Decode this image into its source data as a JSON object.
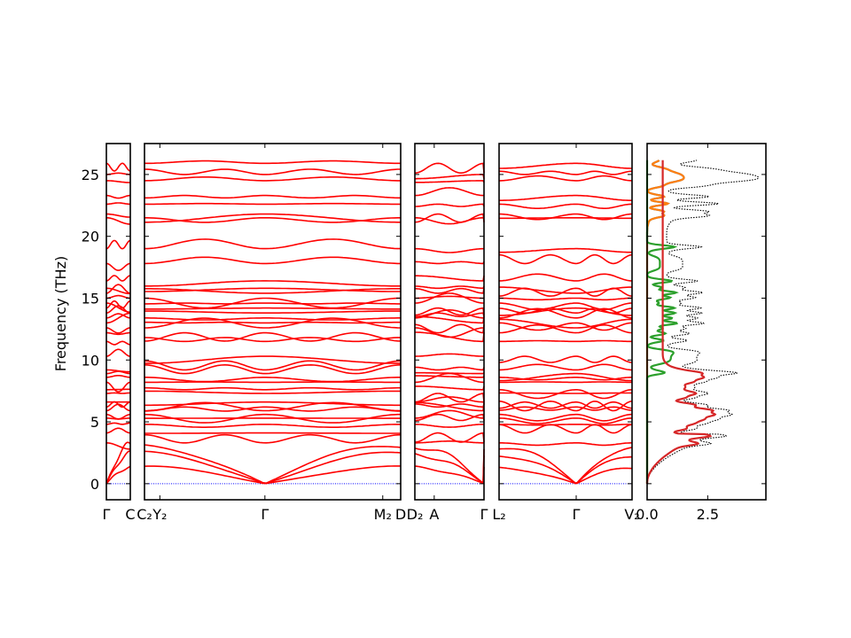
{
  "chart_data": {
    "type": "line",
    "title": "",
    "ylabel": "Frequency (THz)",
    "ylim": [
      -1.3,
      27.5
    ],
    "yticks": [
      0,
      5,
      10,
      15,
      20,
      25
    ],
    "ytick_labels": [
      "0",
      "5",
      "10",
      "15",
      "20",
      "25"
    ],
    "band_color": "#ff0000",
    "zero_line_color": "#0000ff",
    "panels": [
      {
        "name": "panel-1",
        "ticks": [
          {
            "label": "Γ",
            "k": 0
          },
          {
            "label": "C",
            "k": 1
          }
        ],
        "gamma_k": [
          0
        ]
      },
      {
        "name": "panel-2",
        "ticks": [
          {
            "label": "C₂",
            "k": 0
          },
          {
            "label": "Y₂",
            "k": 0.06
          },
          {
            "label": "Γ",
            "k": 0.47
          },
          {
            "label": "M₂",
            "k": 0.93
          },
          {
            "label": "D",
            "k": 1
          }
        ],
        "gamma_k": [
          0.47
        ]
      },
      {
        "name": "panel-3",
        "ticks": [
          {
            "label": "D₂",
            "k": 0
          },
          {
            "label": "A",
            "k": 0.28
          },
          {
            "label": "Γ",
            "k": 1
          }
        ],
        "gamma_k": [
          1
        ]
      },
      {
        "name": "panel-4",
        "ticks": [
          {
            "label": "L₂",
            "k": 0
          },
          {
            "label": "Γ",
            "k": 0.58
          },
          {
            "label": "V₂",
            "k": 1
          }
        ],
        "gamma_k": [
          0.58
        ]
      }
    ],
    "acoustic_edge_THz": [
      1.3,
      2.4,
      3.1
    ],
    "optical_levels_THz": [
      3.3,
      4.1,
      4.8,
      5.3,
      5.6,
      5.9,
      6.2,
      6.6,
      7.3,
      7.6,
      8.2,
      8.6,
      8.9,
      9.2,
      10.3,
      11.5,
      12.2,
      12.6,
      13.0,
      13.4,
      13.8,
      14.2,
      14.6,
      15.0,
      15.4,
      15.8,
      16.4,
      17.8,
      19.0,
      21.5,
      21.8,
      22.6,
      23.3,
      24.5,
      25.0,
      25.9
    ],
    "dos": {
      "xlim": [
        0,
        4.9
      ],
      "xticks": [
        0.0,
        2.5
      ],
      "xtick_labels": [
        "0.0",
        "2.5"
      ],
      "total_color": "#000000",
      "partials": [
        {
          "name": "species-1",
          "color": "#1f77b4",
          "range_THz": [
            20,
            27
          ]
        },
        {
          "name": "species-2",
          "color": "#ff7f0e",
          "range_THz": [
            20,
            27
          ]
        },
        {
          "name": "species-3",
          "color": "#2ca02c",
          "range_THz": [
            9,
            20
          ]
        },
        {
          "name": "species-4",
          "color": "#d62728",
          "range_THz": [
            0,
            10
          ]
        }
      ]
    }
  }
}
